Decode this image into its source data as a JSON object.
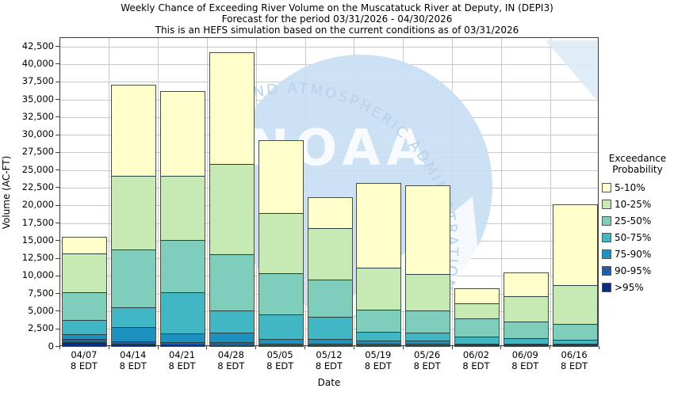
{
  "title": {
    "line1": "Weekly Chance of Exceeding River Volume on the Muscatatuck River at Deputy, IN (DEPI3)",
    "line2": "Forecast for the period 03/31/2026 - 04/30/2026",
    "line3": "This is an HEFS simulation based on the current conditions as of 03/31/2026"
  },
  "y_axis": {
    "label": "Volume (AC-FT)",
    "ticks": [
      {
        "v": 0,
        "label": "0"
      },
      {
        "v": 2500,
        "label": "2,500"
      },
      {
        "v": 5000,
        "label": "5,000"
      },
      {
        "v": 7500,
        "label": "7,500"
      },
      {
        "v": 10000,
        "label": "10,000"
      },
      {
        "v": 12500,
        "label": "12,500"
      },
      {
        "v": 15000,
        "label": "15,000"
      },
      {
        "v": 17500,
        "label": "17,500"
      },
      {
        "v": 20000,
        "label": "20,000"
      },
      {
        "v": 22500,
        "label": "22,500"
      },
      {
        "v": 25000,
        "label": "25,000"
      },
      {
        "v": 27500,
        "label": "27,500"
      },
      {
        "v": 30000,
        "label": "30,000"
      },
      {
        "v": 32500,
        "label": "32,500"
      },
      {
        "v": 35000,
        "label": "35,000"
      },
      {
        "v": 37500,
        "label": "37,500"
      },
      {
        "v": 40000,
        "label": "40,000"
      },
      {
        "v": 42500,
        "label": "42,500"
      }
    ]
  },
  "x_axis": {
    "label": "Date"
  },
  "legend": {
    "title_line1": "Exceedance",
    "title_line2": "Probability"
  },
  "watermark": {
    "name": "noaa-emblem",
    "text": "NOAA",
    "arc_text": "C AND ATMOSPHERIC ADMINISTRATION",
    "circle_color": "#c9def3",
    "arc_text_color": "#b5d1ec"
  },
  "chart_data": {
    "type": "bar",
    "stacked": true,
    "title": "Weekly Chance of Exceeding River Volume on the Muscatatuck River at Deputy, IN (DEPI3)",
    "subtitle": "Forecast for the period 03/31/2026 - 04/30/2026",
    "note": "This is an HEFS simulation based on the current conditions as of 03/31/2026",
    "xlabel": "Date",
    "ylabel": "Volume (AC-FT)",
    "ylim": [
      0,
      43750
    ],
    "grid": true,
    "legend_position": "right",
    "legend_order_top_to_bottom": [
      "5-10%",
      "10-25%",
      "25-50%",
      "50-75%",
      "75-90%",
      "90-95%",
      ">95%"
    ],
    "categories": [
      {
        "date": "04/07",
        "time": "8 EDT"
      },
      {
        "date": "04/14",
        "time": "8 EDT"
      },
      {
        "date": "04/21",
        "time": "8 EDT"
      },
      {
        "date": "04/28",
        "time": "8 EDT"
      },
      {
        "date": "05/05",
        "time": "8 EDT"
      },
      {
        "date": "05/12",
        "time": "8 EDT"
      },
      {
        "date": "05/19",
        "time": "8 EDT"
      },
      {
        "date": "05/26",
        "time": "8 EDT"
      },
      {
        "date": "06/02",
        "time": "8 EDT"
      },
      {
        "date": "06/09",
        "time": "8 EDT"
      },
      {
        "date": "06/16",
        "time": "8 EDT"
      }
    ],
    "bands_bottom_to_top": [
      {
        "label": ">95%",
        "color": "#0c2c84",
        "cumulative_top_acft": [
          790,
          530,
          400,
          300,
          190,
          160,
          150,
          110,
          80,
          60,
          60
        ]
      },
      {
        "label": "90-95%",
        "color": "#225ea8",
        "cumulative_top_acft": [
          1200,
          870,
          800,
          700,
          450,
          420,
          420,
          340,
          160,
          120,
          120
        ]
      },
      {
        "label": "75-90%",
        "color": "#1d91c0",
        "cumulative_top_acft": [
          1900,
          2900,
          2000,
          2050,
          1100,
          1100,
          860,
          750,
          260,
          190,
          190
        ]
      },
      {
        "label": "50-75%",
        "color": "#41b6c4",
        "cumulative_top_acft": [
          3950,
          5750,
          7900,
          5200,
          4600,
          4250,
          2100,
          1950,
          1300,
          1050,
          780
        ]
      },
      {
        "label": "25-50%",
        "color": "#7fcdbb",
        "cumulative_top_acft": [
          7800,
          13900,
          15300,
          13200,
          10500,
          9600,
          5200,
          5100,
          4000,
          3500,
          3100
        ]
      },
      {
        "label": "10-25%",
        "color": "#c7e9b4",
        "cumulative_top_acft": [
          13300,
          24300,
          24300,
          26000,
          19000,
          16900,
          11200,
          10300,
          6200,
          7200,
          8700
        ]
      },
      {
        "label": "5-10%",
        "color": "#ffffcc",
        "cumulative_top_acft": [
          15600,
          37100,
          36200,
          41700,
          29300,
          21200,
          23200,
          22900,
          8300,
          10500,
          20200
        ]
      }
    ]
  }
}
